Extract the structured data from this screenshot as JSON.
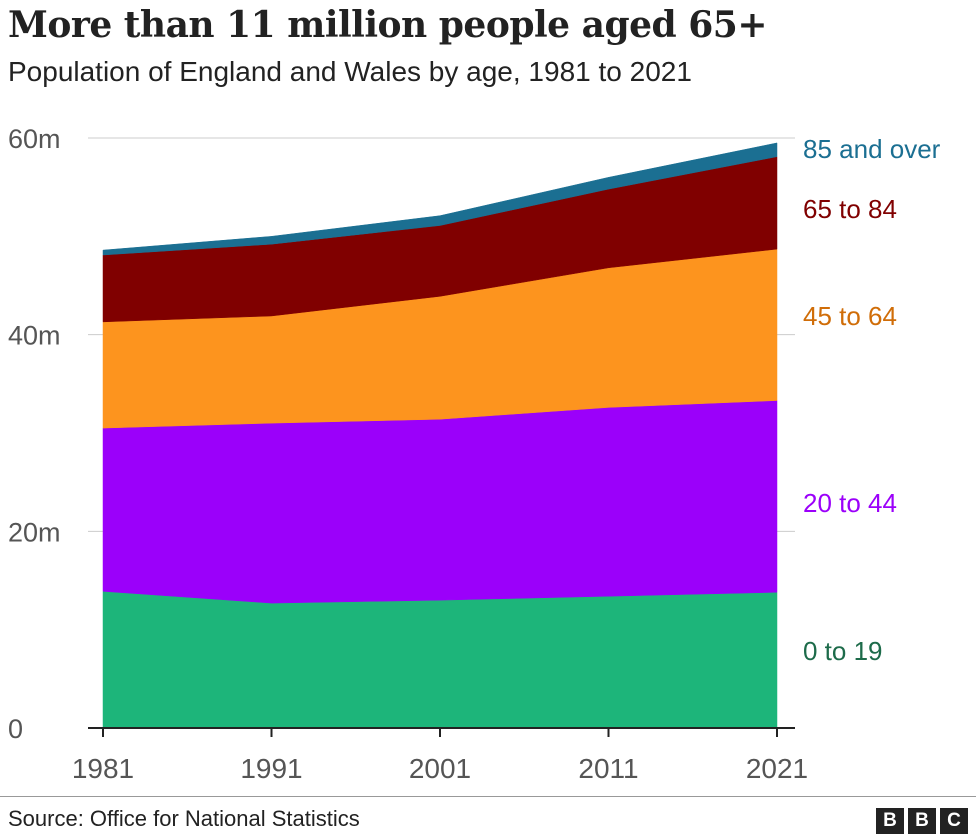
{
  "header": {
    "title": "More than 11 million people aged 65+",
    "subtitle": "Population of England and Wales by age, 1981 to 2021"
  },
  "chart_data": {
    "type": "area",
    "stacked": true,
    "x": [
      1981,
      1991,
      2001,
      2011,
      2021
    ],
    "x_tick_labels": [
      "1981",
      "1991",
      "2001",
      "2011",
      "2021"
    ],
    "y_ticks": [
      0,
      20,
      40,
      60
    ],
    "y_tick_labels": [
      "0",
      "20m",
      "40m",
      "60m"
    ],
    "ylim": [
      0,
      60
    ],
    "y_unit": "millions",
    "grid": true,
    "legend": "direct labels at right",
    "series": [
      {
        "name": "0 to 19",
        "color": "#1db57a",
        "label_color": "#1d6b4a",
        "values": [
          13.9,
          12.7,
          13.0,
          13.4,
          13.8
        ]
      },
      {
        "name": "20 to 44",
        "color": "#9b00fa",
        "label_color": "#9b00fa",
        "values": [
          16.6,
          18.3,
          18.4,
          19.2,
          19.5
        ]
      },
      {
        "name": "45 to 64",
        "color": "#fd941e",
        "label_color": "#d06d08",
        "values": [
          10.8,
          10.9,
          12.5,
          14.2,
          15.4
        ]
      },
      {
        "name": "65 to 84",
        "color": "#800000",
        "label_color": "#800000",
        "values": [
          6.8,
          7.3,
          7.2,
          8.0,
          9.4
        ]
      },
      {
        "name": "85 and over",
        "color": "#1b6f92",
        "label_color": "#1b6f92",
        "values": [
          0.5,
          0.8,
          1.0,
          1.2,
          1.4
        ]
      }
    ]
  },
  "footer": {
    "source": "Source: Office for National Statistics",
    "logo_letters": [
      "B",
      "B",
      "C"
    ]
  }
}
